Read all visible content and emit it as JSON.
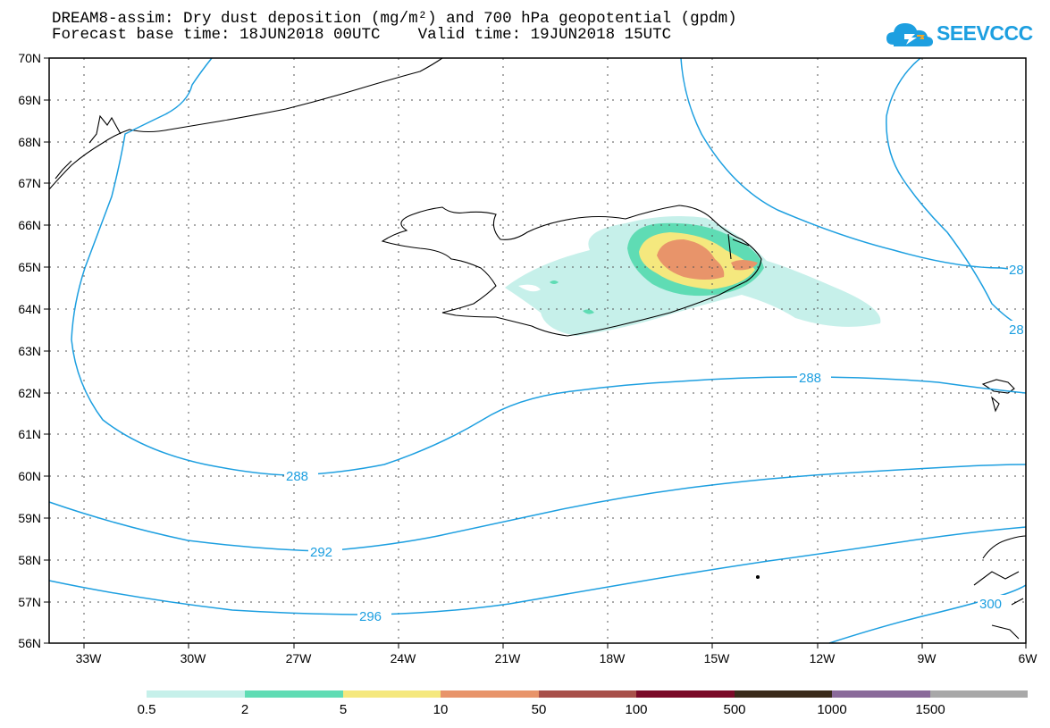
{
  "header": {
    "title_line1": "DREAM8-assim: Dry dust deposition (mg/m²) and 700 hPa geopotential (gpdm)",
    "title_line2": "Forecast base time: 18JUN2018 00UTC    Valid time: 19JUN2018 15UTC"
  },
  "logo": {
    "text": "SEEVCCC",
    "icon": "cloud-logo-icon"
  },
  "map": {
    "lat_labels": [
      "70N",
      "69N",
      "68N",
      "67N",
      "66N",
      "65N",
      "64N",
      "63N",
      "62N",
      "61N",
      "60N",
      "59N",
      "58N",
      "57N",
      "56N"
    ],
    "lon_labels": [
      "33W",
      "30W",
      "27W",
      "24W",
      "21W",
      "18W",
      "15W",
      "12W",
      "9W",
      "6W"
    ],
    "contour_labels": [
      {
        "text": "288",
        "line": "288-south"
      },
      {
        "text": "288",
        "line": "288-north"
      },
      {
        "text": "292",
        "line": "292"
      },
      {
        "text": "296",
        "line": "296"
      },
      {
        "text": "300",
        "line": "300"
      },
      {
        "text": "28",
        "line": "28-a"
      },
      {
        "text": "28",
        "line": "28-b"
      }
    ],
    "colors": {
      "contour": "#1d9fe0",
      "coast": "#000000",
      "grid": "#555555"
    }
  },
  "legend": {
    "labels": [
      "0.5",
      "2",
      "5",
      "10",
      "50",
      "100",
      "500",
      "1000",
      "1500"
    ],
    "colors": [
      "#c6f0ea",
      "#5fdcb4",
      "#f5e87e",
      "#e8946a",
      "#a8504a",
      "#7a0a28",
      "#3a2a1a",
      "#8a6a9a",
      "#a8a8a8"
    ]
  }
}
